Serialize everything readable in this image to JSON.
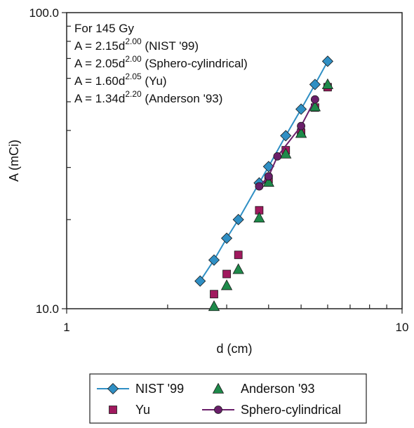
{
  "chart_data": {
    "type": "scatter",
    "xlabel": "d (cm)",
    "ylabel": "A (mCi)",
    "xscale": "log",
    "yscale": "log",
    "xlim": [
      1,
      10
    ],
    "ylim": [
      10,
      100
    ],
    "x_tick_labels": [
      "1",
      "10"
    ],
    "y_tick_labels": [
      "10.0",
      "100.0"
    ],
    "annotation_lines": [
      {
        "text": "For 145 Gy"
      },
      {
        "pre": "A = 2.15d",
        "sup": "2.00",
        "post": " (NIST '99)"
      },
      {
        "pre": "A = 2.05d",
        "sup": "2.00",
        "post": " (Sphero-cylindrical)"
      },
      {
        "pre": "A = 1.60d",
        "sup": "2.05",
        "post": " (Yu)"
      },
      {
        "pre": "A = 1.34d",
        "sup": "2.20",
        "post": " (Anderson '93)"
      }
    ],
    "legend_position": "bottom",
    "series": [
      {
        "name": "NIST '99",
        "marker": "diamond",
        "line": true,
        "color": "#2f8fc4",
        "points": [
          [
            2.5,
            12.4
          ],
          [
            2.75,
            14.6
          ],
          [
            3.0,
            17.3
          ],
          [
            3.25,
            20.0
          ],
          [
            3.75,
            26.6
          ],
          [
            4.0,
            30.2
          ],
          [
            4.5,
            38.4
          ],
          [
            5.0,
            47.2
          ],
          [
            5.5,
            57.2
          ],
          [
            6.0,
            68.5
          ]
        ]
      },
      {
        "name": "Anderson '93",
        "marker": "triangle",
        "line": false,
        "color": "#1e8a4a",
        "points": [
          [
            2.75,
            10.2
          ],
          [
            3.0,
            12.0
          ],
          [
            3.25,
            13.6
          ],
          [
            3.75,
            20.3
          ],
          [
            4.0,
            26.8
          ],
          [
            4.5,
            33.4
          ],
          [
            5.0,
            39.2
          ],
          [
            5.5,
            48.2
          ],
          [
            6.0,
            57.3
          ]
        ]
      },
      {
        "name": "Yu",
        "marker": "square",
        "line": false,
        "color": "#a0195e",
        "points": [
          [
            2.75,
            11.2
          ],
          [
            3.0,
            13.1
          ],
          [
            3.25,
            15.2
          ],
          [
            3.75,
            21.5
          ],
          [
            4.0,
            27.4
          ],
          [
            4.5,
            34.3
          ],
          [
            5.0,
            39.3
          ],
          [
            5.5,
            47.8
          ],
          [
            6.0,
            56.0
          ]
        ]
      },
      {
        "name": "Sphero-cylindrical",
        "marker": "circle",
        "line": true,
        "color": "#6a1f6a",
        "points": [
          [
            3.75,
            25.9
          ],
          [
            4.0,
            28.0
          ],
          [
            4.25,
            32.7
          ],
          [
            5.0,
            41.4
          ],
          [
            5.5,
            50.9
          ]
        ]
      }
    ]
  }
}
